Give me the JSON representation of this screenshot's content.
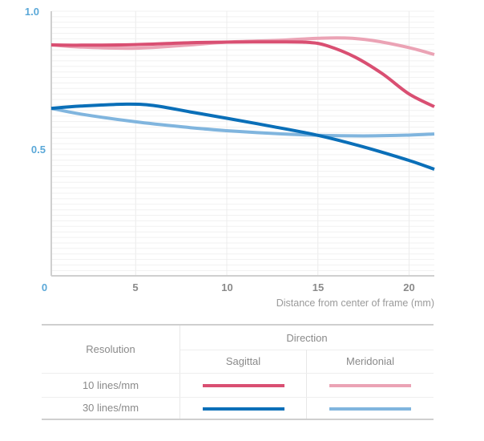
{
  "chart_data": {
    "type": "line",
    "title": "",
    "xlabel": "Distance from center of frame (mm)",
    "ylabel": "",
    "xlim": [
      0,
      21.6
    ],
    "ylim": [
      0,
      1.0
    ],
    "x_ticks": [
      0,
      5,
      10,
      15,
      20
    ],
    "x_tick_labels": [
      "0",
      "5",
      "10",
      "15",
      "20"
    ],
    "y_ticks": [
      0.5,
      1.0
    ],
    "y_tick_labels": [
      "0.5",
      "1.0"
    ],
    "grid": true,
    "series": [
      {
        "name": "10 lines/mm Sagittal",
        "color": "#d94f72",
        "x": [
          0.4,
          2,
          5,
          8,
          10,
          13,
          14.5,
          15.5,
          17,
          18.5,
          20,
          21.4
        ],
        "y": [
          0.878,
          0.877,
          0.879,
          0.886,
          0.888,
          0.889,
          0.887,
          0.875,
          0.835,
          0.775,
          0.7,
          0.654
        ]
      },
      {
        "name": "10 lines/mm Meridonial",
        "color": "#eba3b5",
        "x": [
          0.4,
          2,
          5,
          8,
          10,
          13,
          15,
          16.5,
          18,
          20,
          21.4
        ],
        "y": [
          0.878,
          0.87,
          0.866,
          0.878,
          0.888,
          0.895,
          0.902,
          0.903,
          0.894,
          0.868,
          0.843
        ]
      },
      {
        "name": "30 lines/mm Sagittal",
        "color": "#0a6fb8",
        "x": [
          0.4,
          2,
          4.5,
          6,
          8,
          10,
          12.5,
          15,
          17.5,
          20,
          21.4
        ],
        "y": [
          0.648,
          0.656,
          0.663,
          0.658,
          0.635,
          0.612,
          0.582,
          0.55,
          0.508,
          0.459,
          0.427
        ]
      },
      {
        "name": "30 lines/mm Meridonial",
        "color": "#80b5de",
        "x": [
          0.4,
          2,
          5,
          8,
          10,
          12.5,
          15,
          17.5,
          20,
          21.4
        ],
        "y": [
          0.648,
          0.627,
          0.599,
          0.578,
          0.567,
          0.557,
          0.55,
          0.548,
          0.551,
          0.555
        ]
      }
    ]
  },
  "legend": {
    "resolution_header": "Resolution",
    "direction_header": "Direction",
    "sagittal_header": "Sagittal",
    "meridonial_header": "Meridonial",
    "rows": [
      {
        "label": "10 lines/mm",
        "sagittal_color": "#d94f72",
        "meridonial_color": "#eba3b5"
      },
      {
        "label": "30 lines/mm",
        "sagittal_color": "#0a6fb8",
        "meridonial_color": "#80b5de"
      }
    ]
  }
}
